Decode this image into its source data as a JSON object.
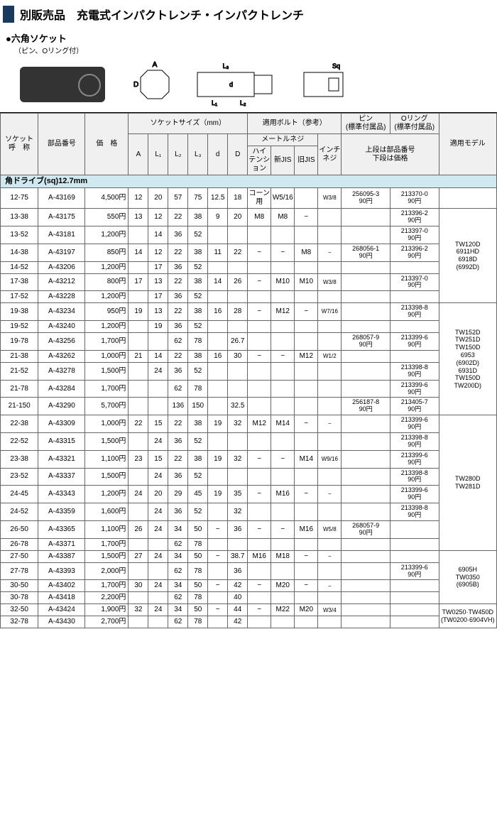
{
  "header": {
    "title": "別販売品　充電式インパクトレンチ・インパクトレンチ"
  },
  "subhead": {
    "title": "●六角ソケット",
    "sub": "（ピン、Oリング付）"
  },
  "diagram_labels": {
    "A": "A",
    "D": "D",
    "L1": "L₁",
    "L2": "L₂",
    "L3": "L₃",
    "d": "d",
    "Sq": "Sq"
  },
  "thead": {
    "socket": "ソケット\n呼　称",
    "part": "部品番号",
    "price": "価　格",
    "size_group": "ソケットサイズ（mm）",
    "A": "A",
    "L1": "L₁",
    "L2": "L₂",
    "L3": "L₃",
    "d": "d",
    "D": "D",
    "bolt_group": "適用ボルト（参考）",
    "metric": "メートルネジ",
    "hi": "ハイ\nテンション",
    "shin": "新JIS",
    "kyu": "旧JIS",
    "inch": "インチ\nネジ",
    "pin": "ピン\n(標準付属品)",
    "oring": "Oリング\n(標準付属品)",
    "pin_note": "上段は部品番号\n下段は価格",
    "model": "適用モデル"
  },
  "section": "角ドライブ(sq)12.7mm",
  "rows": [
    {
      "s": "12-75",
      "p": "A-43169",
      "pr": "4,500円",
      "A": "12",
      "L1": "20",
      "L2": "57",
      "L3": "75",
      "d": "12.5",
      "D": "18",
      "hi": "コーン用",
      "sh": "W5/16",
      "kj": "",
      "in": "W3/8",
      "pin": "256095-3\n90円",
      "or": "213370-0\n90円"
    },
    {
      "s": "13-38",
      "p": "A-43175",
      "pr": "550円",
      "A": "13",
      "L1": "12",
      "L2": "22",
      "L3": "38",
      "d": "9",
      "D": "20",
      "hi": "M8",
      "sh": "M8",
      "kj": "−",
      "in": "",
      "pin": "",
      "or": "213396-2\n90円"
    },
    {
      "s": "13-52",
      "p": "A-43181",
      "pr": "1,200円",
      "A": "",
      "L1": "14",
      "L2": "36",
      "L3": "52",
      "d": "",
      "D": "",
      "hi": "",
      "sh": "",
      "kj": "",
      "in": "",
      "pin": "",
      "or": "213397-0\n90円"
    },
    {
      "s": "14-38",
      "p": "A-43197",
      "pr": "850円",
      "A": "14",
      "L1": "12",
      "L2": "22",
      "L3": "38",
      "d": "11",
      "D": "22",
      "hi": "−",
      "sh": "−",
      "kj": "M8",
      "in": "−",
      "pin": "268056-1\n90円",
      "or": "213396-2\n90円"
    },
    {
      "s": "14-52",
      "p": "A-43206",
      "pr": "1,200円",
      "A": "",
      "L1": "17",
      "L2": "36",
      "L3": "52",
      "d": "",
      "D": "",
      "hi": "",
      "sh": "",
      "kj": "",
      "in": "",
      "pin": "",
      "or": ""
    },
    {
      "s": "17-38",
      "p": "A-43212",
      "pr": "800円",
      "A": "17",
      "L1": "13",
      "L2": "22",
      "L3": "38",
      "d": "14",
      "D": "26",
      "hi": "−",
      "sh": "M10",
      "kj": "M10",
      "in": "W3/8",
      "pin": "",
      "or": "213397-0\n90円"
    },
    {
      "s": "17-52",
      "p": "A-43228",
      "pr": "1,200円",
      "A": "",
      "L1": "17",
      "L2": "36",
      "L3": "52",
      "d": "",
      "D": "",
      "hi": "",
      "sh": "",
      "kj": "",
      "in": "",
      "pin": "",
      "or": ""
    },
    {
      "s": "19-38",
      "p": "A-43234",
      "pr": "950円",
      "A": "19",
      "L1": "13",
      "L2": "22",
      "L3": "38",
      "d": "16",
      "D": "28",
      "hi": "−",
      "sh": "M12",
      "kj": "−",
      "in": "W7/16",
      "pin": "",
      "or": "213398-8\n90円"
    },
    {
      "s": "19-52",
      "p": "A-43240",
      "pr": "1,200円",
      "A": "",
      "L1": "19",
      "L2": "36",
      "L3": "52",
      "d": "",
      "D": "",
      "hi": "",
      "sh": "",
      "kj": "",
      "in": "",
      "pin": "",
      "or": ""
    },
    {
      "s": "19-78",
      "p": "A-43256",
      "pr": "1,700円",
      "A": "",
      "L1": "",
      "L2": "62",
      "L3": "78",
      "d": "",
      "D": "26.7",
      "hi": "",
      "sh": "",
      "kj": "",
      "in": "",
      "pin": "268057-9\n90円",
      "or": "213399-6\n90円"
    },
    {
      "s": "21-38",
      "p": "A-43262",
      "pr": "1,000円",
      "A": "21",
      "L1": "14",
      "L2": "22",
      "L3": "38",
      "d": "16",
      "D": "30",
      "hi": "−",
      "sh": "−",
      "kj": "M12",
      "in": "W1/2",
      "pin": "",
      "or": ""
    },
    {
      "s": "21-52",
      "p": "A-43278",
      "pr": "1,500円",
      "A": "",
      "L1": "24",
      "L2": "36",
      "L3": "52",
      "d": "",
      "D": "",
      "hi": "",
      "sh": "",
      "kj": "",
      "in": "",
      "pin": "",
      "or": "213398-8\n90円"
    },
    {
      "s": "21-78",
      "p": "A-43284",
      "pr": "1,700円",
      "A": "",
      "L1": "",
      "L2": "62",
      "L3": "78",
      "d": "",
      "D": "",
      "hi": "",
      "sh": "",
      "kj": "",
      "in": "",
      "pin": "",
      "or": "213399-6\n90円"
    },
    {
      "s": "21-150",
      "p": "A-43290",
      "pr": "5,700円",
      "A": "",
      "L1": "",
      "L2": "136",
      "L3": "150",
      "d": "",
      "D": "32.5",
      "hi": "",
      "sh": "",
      "kj": "",
      "in": "",
      "pin": "256187-8\n90円",
      "or": "213405-7\n90円"
    },
    {
      "s": "22-38",
      "p": "A-43309",
      "pr": "1,000円",
      "A": "22",
      "L1": "15",
      "L2": "22",
      "L3": "38",
      "d": "19",
      "D": "32",
      "hi": "M12",
      "sh": "M14",
      "kj": "−",
      "in": "−",
      "pin": "",
      "or": "213399-6\n90円"
    },
    {
      "s": "22-52",
      "p": "A-43315",
      "pr": "1,500円",
      "A": "",
      "L1": "24",
      "L2": "36",
      "L3": "52",
      "d": "",
      "D": "",
      "hi": "",
      "sh": "",
      "kj": "",
      "in": "",
      "pin": "",
      "or": "213398-8\n90円"
    },
    {
      "s": "23-38",
      "p": "A-43321",
      "pr": "1,100円",
      "A": "23",
      "L1": "15",
      "L2": "22",
      "L3": "38",
      "d": "19",
      "D": "32",
      "hi": "−",
      "sh": "−",
      "kj": "M14",
      "in": "W9/16",
      "pin": "",
      "or": "213399-6\n90円"
    },
    {
      "s": "23-52",
      "p": "A-43337",
      "pr": "1,500円",
      "A": "",
      "L1": "24",
      "L2": "36",
      "L3": "52",
      "d": "",
      "D": "",
      "hi": "",
      "sh": "",
      "kj": "",
      "in": "",
      "pin": "",
      "or": "213398-8\n90円"
    },
    {
      "s": "24-45",
      "p": "A-43343",
      "pr": "1,200円",
      "A": "24",
      "L1": "20",
      "L2": "29",
      "L3": "45",
      "d": "19",
      "D": "35",
      "hi": "−",
      "sh": "M16",
      "kj": "−",
      "in": "−",
      "pin": "",
      "or": "213399-6\n90円"
    },
    {
      "s": "24-52",
      "p": "A-43359",
      "pr": "1,600円",
      "A": "",
      "L1": "24",
      "L2": "36",
      "L3": "52",
      "d": "",
      "D": "32",
      "hi": "",
      "sh": "",
      "kj": "",
      "in": "",
      "pin": "",
      "or": "213398-8\n90円"
    },
    {
      "s": "26-50",
      "p": "A-43365",
      "pr": "1,100円",
      "A": "26",
      "L1": "24",
      "L2": "34",
      "L3": "50",
      "d": "−",
      "D": "36",
      "hi": "−",
      "sh": "−",
      "kj": "M16",
      "in": "W5/8",
      "pin": "268057-9\n90円",
      "or": ""
    },
    {
      "s": "26-78",
      "p": "A-43371",
      "pr": "1,700円",
      "A": "",
      "L1": "",
      "L2": "62",
      "L3": "78",
      "d": "",
      "D": "",
      "hi": "",
      "sh": "",
      "kj": "",
      "in": "",
      "pin": "",
      "or": ""
    },
    {
      "s": "27-50",
      "p": "A-43387",
      "pr": "1,500円",
      "A": "27",
      "L1": "24",
      "L2": "34",
      "L3": "50",
      "d": "−",
      "D": "38.7",
      "hi": "M16",
      "sh": "M18",
      "kj": "−",
      "in": "−",
      "pin": "",
      "or": ""
    },
    {
      "s": "27-78",
      "p": "A-43393",
      "pr": "2,000円",
      "A": "",
      "L1": "",
      "L2": "62",
      "L3": "78",
      "d": "",
      "D": "36",
      "hi": "",
      "sh": "",
      "kj": "",
      "in": "",
      "pin": "",
      "or": "213399-6\n90円"
    },
    {
      "s": "30-50",
      "p": "A-43402",
      "pr": "1,700円",
      "A": "30",
      "L1": "24",
      "L2": "34",
      "L3": "50",
      "d": "−",
      "D": "42",
      "hi": "−",
      "sh": "M20",
      "kj": "−",
      "in": "−",
      "pin": "",
      "or": ""
    },
    {
      "s": "30-78",
      "p": "A-43418",
      "pr": "2,200円",
      "A": "",
      "L1": "",
      "L2": "62",
      "L3": "78",
      "d": "",
      "D": "40",
      "hi": "",
      "sh": "",
      "kj": "",
      "in": "",
      "pin": "",
      "or": ""
    },
    {
      "s": "32-50",
      "p": "A-43424",
      "pr": "1,900円",
      "A": "32",
      "L1": "24",
      "L2": "34",
      "L3": "50",
      "d": "−",
      "D": "44",
      "hi": "−",
      "sh": "M22",
      "kj": "M20",
      "in": "W3/4",
      "pin": "",
      "or": ""
    },
    {
      "s": "32-78",
      "p": "A-43430",
      "pr": "2,700円",
      "A": "",
      "L1": "",
      "L2": "62",
      "L3": "78",
      "d": "",
      "D": "42",
      "hi": "",
      "sh": "",
      "kj": "",
      "in": "",
      "pin": "",
      "or": ""
    }
  ],
  "models": {
    "group1": "TW120D\n6911HD\n6918D\n(6992D)",
    "group2": "TW152D\nTW251D\nTW150D\n6953\n(6902D)\n6931D\nTW150D\nTW200D)",
    "group3": "TW280D\nTW281D",
    "group4": "6905H\nTW0350\n(6905B)",
    "group5": "TW0250·TW450D\n(TW0200·6904VH)"
  }
}
